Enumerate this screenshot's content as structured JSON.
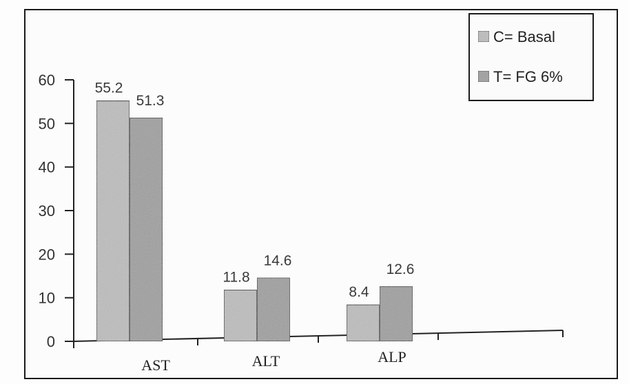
{
  "chart_data": {
    "type": "bar",
    "categories": [
      "AST",
      "ALT",
      "ALP"
    ],
    "series": [
      {
        "name": "C= Basal",
        "values": [
          55.2,
          11.8,
          8.4
        ],
        "color": "#bdbdbd"
      },
      {
        "name": "T= FG 6%",
        "values": [
          51.3,
          14.6,
          12.6
        ],
        "color": "#9e9e9e"
      }
    ],
    "data_labels": [
      [
        "55.2",
        "11.8",
        "8.4"
      ],
      [
        "51.3",
        "14.6",
        "12.6"
      ]
    ],
    "y_ticks": [
      "0",
      "10",
      "20",
      "30",
      "40",
      "50",
      "60"
    ],
    "ylim": [
      0,
      60
    ],
    "title": "",
    "xlabel": "",
    "ylabel": "",
    "grid": false,
    "legend_position": "top-right"
  }
}
